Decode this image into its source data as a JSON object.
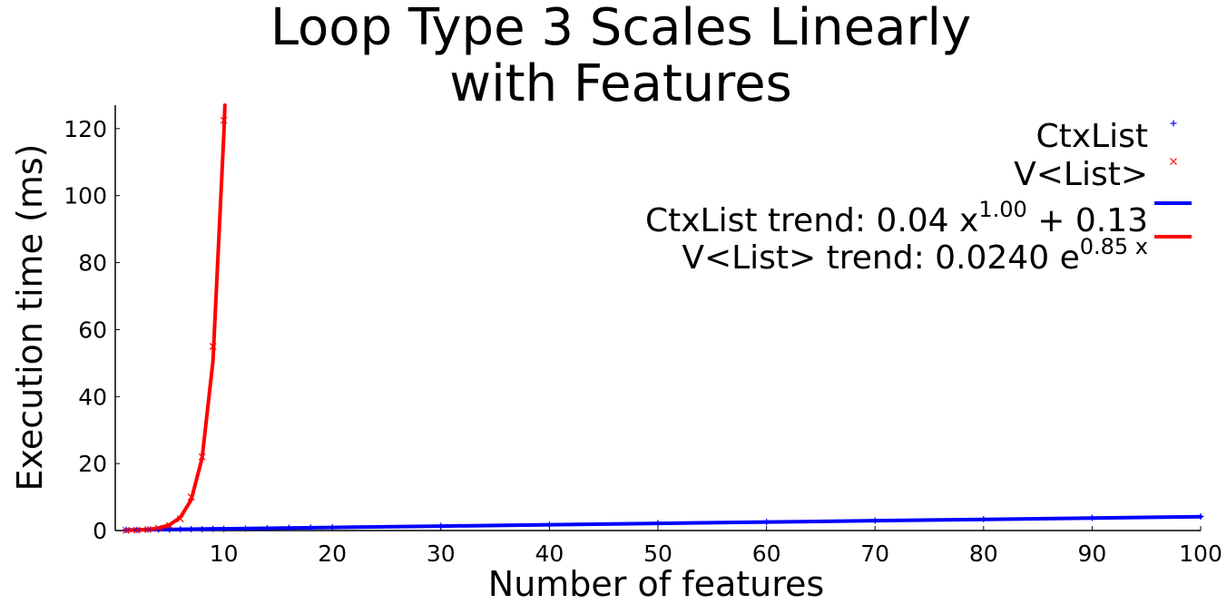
{
  "chart_data": {
    "type": "scatter",
    "title": [
      "Loop Type 3 Scales Linearly",
      "with Features"
    ],
    "xlabel": "Number of features",
    "ylabel": "Execution time (ms)",
    "xlim": [
      0,
      100
    ],
    "ylim": [
      0,
      127
    ],
    "x_ticks": [
      10,
      20,
      30,
      40,
      50,
      60,
      70,
      80,
      90,
      100
    ],
    "y_ticks": [
      0,
      20,
      40,
      60,
      80,
      100,
      120
    ],
    "grid": false,
    "legend_position": "top-right",
    "series": [
      {
        "name": "CtxList",
        "kind": "points",
        "marker": "plus",
        "color": "#0000ff",
        "x": [
          1,
          2,
          3,
          4,
          5,
          6,
          7,
          8,
          9,
          10,
          12,
          14,
          16,
          18,
          20,
          30,
          40,
          50,
          60,
          70,
          80,
          90,
          100
        ],
        "y": [
          0.2,
          0.2,
          0.3,
          0.3,
          0.3,
          0.4,
          0.4,
          0.4,
          0.5,
          0.5,
          0.6,
          0.7,
          0.8,
          0.9,
          1.0,
          1.4,
          1.8,
          2.2,
          2.6,
          3.0,
          3.4,
          3.8,
          4.2
        ]
      },
      {
        "name": "V<List>",
        "kind": "points",
        "marker": "x",
        "color": "#ff0000",
        "x": [
          1,
          2,
          3,
          4,
          5,
          6,
          7,
          8,
          9,
          10
        ],
        "y": [
          0.05,
          0.1,
          0.3,
          0.7,
          1.5,
          3.5,
          10.0,
          22.0,
          55.0,
          122.5
        ]
      },
      {
        "name": "CtxList trend: 0.04 x^1.00 + 0.13",
        "kind": "line",
        "color": "#0000ff",
        "x": [
          1,
          10,
          20,
          30,
          40,
          50,
          60,
          70,
          80,
          90,
          100
        ],
        "y": [
          0.17,
          0.53,
          0.93,
          1.33,
          1.73,
          2.13,
          2.53,
          2.93,
          3.33,
          3.73,
          4.13
        ]
      },
      {
        "name": "V<List> trend: 0.0240 e^0.85 x",
        "kind": "line",
        "color": "#ff0000",
        "x": [
          1,
          2,
          3,
          4,
          5,
          6,
          7,
          8,
          9,
          10,
          10.1
        ],
        "y": [
          0.06,
          0.13,
          0.31,
          0.72,
          1.68,
          3.94,
          9.21,
          21.6,
          50.5,
          118.2,
          127
        ]
      }
    ],
    "legend": [
      {
        "text": "CtxList",
        "sup": "",
        "tail": "",
        "tail2": "",
        "symbol": "plus",
        "color": "#0000ff"
      },
      {
        "text": "V<List>",
        "sup": "",
        "tail": "",
        "tail2": "",
        "symbol": "x",
        "color": "#ff0000"
      },
      {
        "text": "CtxList trend: 0.04 x",
        "sup": "1.00",
        "tail": " + 0.13",
        "tail2": "",
        "symbol": "line",
        "color": "#0000ff"
      },
      {
        "text": "V<List> trend: 0.0240 e",
        "sup": "0.85 x",
        "tail": "",
        "tail2": "",
        "symbol": "line",
        "color": "#ff0000"
      }
    ]
  }
}
